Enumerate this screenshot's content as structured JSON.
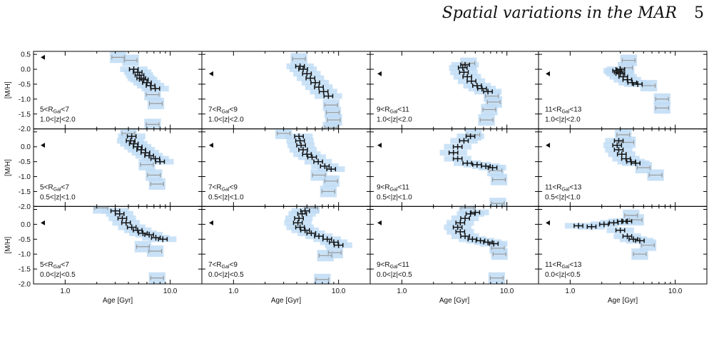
{
  "header": {
    "title": "Spatial variations in the MAR",
    "page_number": "5"
  },
  "chart_data": {
    "type": "scatter",
    "layout": "3x4 grid",
    "xlabel": "Age [Gyr]",
    "ylabel": "[M/H]",
    "xscale": "log",
    "xlim": [
      0.5,
      20
    ],
    "ylim": [
      -2.0,
      0.6
    ],
    "xticks": [
      "1.0",
      "10.0"
    ],
    "yticks": [
      "0.5",
      "0.0",
      "-0.5",
      "-1.0",
      "-1.5",
      "-2.0"
    ],
    "colors": {
      "points": "#111111",
      "outer_points": "#999999",
      "band": "#bfdcf5",
      "frame": "#000000"
    },
    "panels": [
      {
        "r": "5<R_Gal<7",
        "z": "1.0<|z|<2.0",
        "pts": [
          [
            4.5,
            0.0
          ],
          [
            4.9,
            -0.1
          ],
          [
            5.1,
            -0.2
          ],
          [
            5.3,
            -0.3
          ],
          [
            5.6,
            -0.35
          ],
          [
            6.0,
            -0.45
          ],
          [
            6.5,
            -0.55
          ],
          [
            7.2,
            -0.65
          ]
        ],
        "gray": [
          [
            3.2,
            0.4
          ],
          [
            4.2,
            0.3
          ],
          [
            6.8,
            -0.85
          ],
          [
            7.3,
            -1.15
          ],
          [
            6.8,
            -1.85
          ]
        ]
      },
      {
        "r": "7<R_Gal<9",
        "z": "1.0<|z|<2.0",
        "pts": [
          [
            4.3,
            0.1
          ],
          [
            4.6,
            0.0
          ],
          [
            5.0,
            -0.15
          ],
          [
            5.4,
            -0.3
          ],
          [
            6.0,
            -0.45
          ],
          [
            6.5,
            -0.6
          ],
          [
            7.2,
            -0.75
          ],
          [
            8.0,
            -0.9
          ]
        ],
        "gray": [
          [
            4.2,
            0.35
          ],
          [
            8.5,
            -1.2
          ],
          [
            8.8,
            -1.45
          ],
          [
            9.0,
            -1.7
          ],
          [
            8.5,
            -1.95
          ]
        ]
      },
      {
        "r": "9<R_Gal<11",
        "z": "1.0<|z|<2.0",
        "pts": [
          [
            4.0,
            0.15
          ],
          [
            3.8,
            0.05
          ],
          [
            3.9,
            -0.1
          ],
          [
            4.2,
            -0.25
          ],
          [
            4.6,
            -0.4
          ],
          [
            5.2,
            -0.55
          ],
          [
            5.8,
            -0.65
          ],
          [
            6.6,
            -0.75
          ]
        ],
        "gray": [
          [
            4.3,
            0.2
          ],
          [
            7.2,
            -0.9
          ],
          [
            7.5,
            -1.1
          ],
          [
            6.8,
            -1.35
          ],
          [
            6.4,
            -1.7
          ]
        ]
      },
      {
        "r": "11<R_Gal<13",
        "z": "1.0<|z|<2.0",
        "pts": [
          [
            2.8,
            -0.05
          ],
          [
            3.0,
            -0.15
          ],
          [
            3.2,
            -0.25
          ],
          [
            3.5,
            -0.35
          ],
          [
            3.9,
            -0.45
          ],
          [
            4.4,
            -0.5
          ],
          [
            3.0,
            0.0
          ],
          [
            2.9,
            -0.1
          ]
        ],
        "gray": [
          [
            3.6,
            0.3
          ],
          [
            3.4,
            0.05
          ],
          [
            5.6,
            -0.55
          ],
          [
            7.5,
            -1.0
          ],
          [
            7.5,
            -1.3
          ]
        ]
      },
      {
        "r": "5<R_Gal<7",
        "z": "0.5<|z|<1.0",
        "pts": [
          [
            4.3,
            0.35
          ],
          [
            4.2,
            0.2
          ],
          [
            4.5,
            0.1
          ],
          [
            4.9,
            0.0
          ],
          [
            5.3,
            -0.1
          ],
          [
            5.8,
            -0.2
          ],
          [
            6.3,
            -0.3
          ],
          [
            7.2,
            -0.4
          ],
          [
            8.0,
            -0.5
          ]
        ],
        "gray": [
          [
            4.0,
            0.45
          ],
          [
            6.0,
            -0.6
          ],
          [
            7.0,
            -0.95
          ],
          [
            7.5,
            -1.25
          ]
        ]
      },
      {
        "r": "7<R_Gal<9",
        "z": "0.5<|z|<1.0",
        "pts": [
          [
            4.2,
            0.35
          ],
          [
            4.3,
            0.2
          ],
          [
            4.4,
            0.05
          ],
          [
            4.6,
            -0.1
          ],
          [
            5.0,
            -0.25
          ],
          [
            5.6,
            -0.35
          ],
          [
            6.4,
            -0.5
          ],
          [
            7.4,
            -0.65
          ],
          [
            8.5,
            -0.75
          ]
        ],
        "gray": [
          [
            3.0,
            0.45
          ],
          [
            6.5,
            -0.95
          ],
          [
            8.5,
            -1.15
          ],
          [
            8.0,
            -1.5
          ]
        ]
      },
      {
        "r": "9<R_Gal<11",
        "z": "0.5<|z|<1.0",
        "pts": [
          [
            4.5,
            0.35
          ],
          [
            3.9,
            0.2
          ],
          [
            3.4,
            0.0
          ],
          [
            3.1,
            -0.2
          ],
          [
            3.4,
            -0.4
          ],
          [
            4.2,
            -0.55
          ],
          [
            5.2,
            -0.6
          ],
          [
            6.3,
            -0.65
          ],
          [
            7.3,
            -0.7
          ]
        ],
        "gray": [
          [
            4.8,
            0.4
          ],
          [
            7.8,
            -0.8
          ],
          [
            8.4,
            -1.1
          ],
          [
            8.2,
            -1.9
          ]
        ]
      },
      {
        "r": "11<R_Gal<13",
        "z": "0.5<|z|<1.0",
        "pts": [
          [
            2.9,
            0.2
          ],
          [
            2.8,
            0.05
          ],
          [
            2.9,
            -0.1
          ],
          [
            3.1,
            -0.25
          ],
          [
            3.4,
            -0.4
          ],
          [
            3.8,
            -0.5
          ],
          [
            4.2,
            -0.55
          ]
        ],
        "gray": [
          [
            3.2,
            0.4
          ],
          [
            3.5,
            0.15
          ],
          [
            5.0,
            -0.7
          ],
          [
            6.5,
            -0.95
          ]
        ]
      },
      {
        "r": "5<R_Gal<7",
        "z": "0.0<|z|<0.5",
        "pts": [
          [
            3.0,
            0.45
          ],
          [
            3.3,
            0.35
          ],
          [
            3.5,
            0.2
          ],
          [
            3.8,
            0.05
          ],
          [
            4.3,
            -0.1
          ],
          [
            4.9,
            -0.2
          ],
          [
            5.5,
            -0.3
          ],
          [
            6.3,
            -0.35
          ],
          [
            7.3,
            -0.45
          ],
          [
            8.5,
            -0.5
          ]
        ],
        "gray": [
          [
            2.2,
            0.55
          ],
          [
            5.5,
            -0.75
          ],
          [
            7.2,
            -0.9
          ],
          [
            7.5,
            -1.8
          ]
        ]
      },
      {
        "r": "7<R_Gal<9",
        "z": "0.0<|z|<0.5",
        "pts": [
          [
            4.8,
            0.45
          ],
          [
            4.5,
            0.35
          ],
          [
            4.2,
            0.2
          ],
          [
            4.1,
            0.05
          ],
          [
            4.3,
            -0.1
          ],
          [
            4.8,
            -0.2
          ],
          [
            5.5,
            -0.3
          ],
          [
            6.5,
            -0.4
          ],
          [
            7.8,
            -0.5
          ],
          [
            9.0,
            -0.6
          ],
          [
            10.0,
            -0.7
          ]
        ],
        "gray": [
          [
            5.5,
            0.55
          ],
          [
            9.2,
            -0.95
          ],
          [
            7.5,
            -1.05
          ],
          [
            7.0,
            -1.85
          ]
        ]
      },
      {
        "r": "9<R_Gal<11",
        "z": "0.0<|z|<0.5",
        "pts": [
          [
            5.0,
            0.4
          ],
          [
            4.5,
            0.35
          ],
          [
            4.0,
            0.2
          ],
          [
            3.6,
            0.05
          ],
          [
            3.4,
            -0.1
          ],
          [
            3.6,
            -0.25
          ],
          [
            4.0,
            -0.4
          ],
          [
            4.7,
            -0.5
          ],
          [
            5.6,
            -0.55
          ],
          [
            6.6,
            -0.6
          ],
          [
            7.5,
            -0.65
          ]
        ],
        "gray": [
          [
            4.2,
            0.55
          ],
          [
            8.2,
            -0.8
          ],
          [
            8.5,
            -1.0
          ],
          [
            8.0,
            -1.8
          ]
        ]
      },
      {
        "r": "11<R_Gal<13",
        "z": "0.0<|z|<0.5",
        "pts": [
          [
            1.2,
            -0.05
          ],
          [
            1.6,
            -0.08
          ],
          [
            2.1,
            0.0
          ],
          [
            2.6,
            0.05
          ],
          [
            3.1,
            0.1
          ],
          [
            3.5,
            0.1
          ],
          [
            3.0,
            -0.2
          ],
          [
            3.5,
            -0.4
          ],
          [
            4.0,
            -0.5
          ],
          [
            4.6,
            -0.55
          ]
        ],
        "gray": [
          [
            3.8,
            0.3
          ],
          [
            4.2,
            0.15
          ],
          [
            5.5,
            -0.7
          ],
          [
            4.6,
            -1.0
          ]
        ]
      }
    ]
  }
}
